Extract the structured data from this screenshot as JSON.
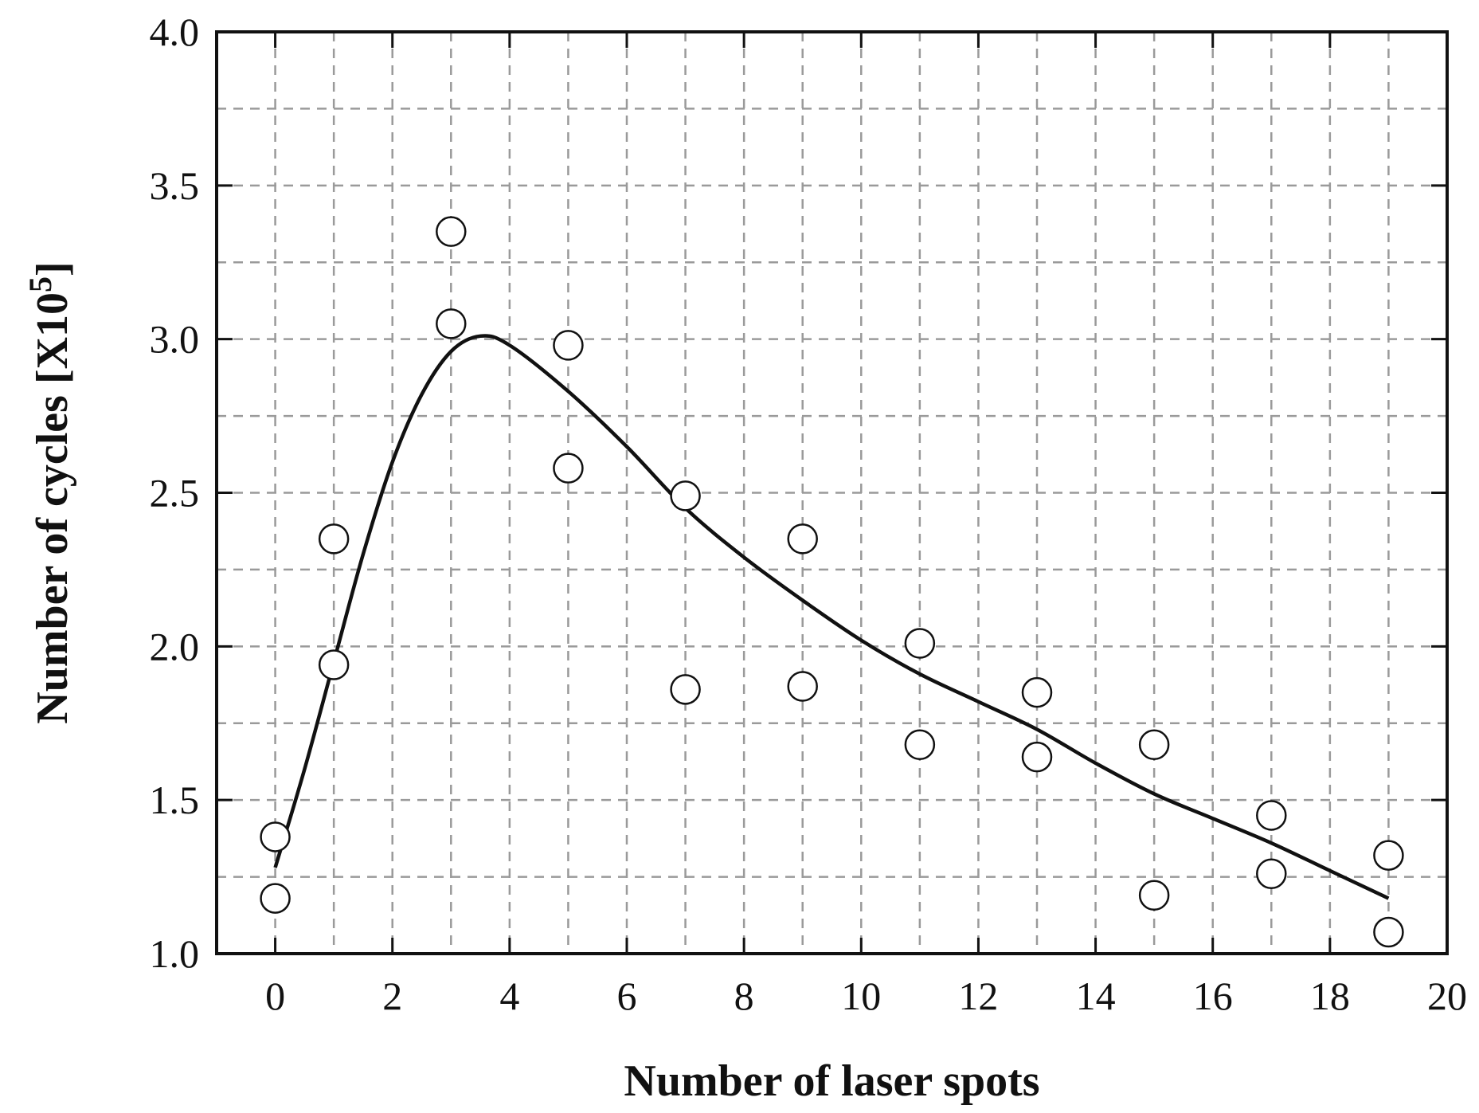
{
  "chart_data": {
    "type": "scatter",
    "xlabel": "Number of laser spots",
    "ylabel": {
      "text": "Number of cycles [X10",
      "superscript": "5",
      "suffix": "]"
    },
    "xlim": [
      -1,
      20
    ],
    "ylim": [
      1.0,
      4.0
    ],
    "x_ticks": [
      "0",
      "2",
      "4",
      "6",
      "8",
      "10",
      "12",
      "14",
      "16",
      "18",
      "20"
    ],
    "y_ticks": [
      "1.0",
      "1.5",
      "2.0",
      "2.5",
      "3.0",
      "3.5",
      "4.0"
    ],
    "grid": true,
    "grid_x_step": 1,
    "grid_y_step": 0.25,
    "series": [
      {
        "marker": "open-circle",
        "points": [
          {
            "x": 0,
            "y": 1.38
          },
          {
            "x": 0,
            "y": 1.18
          },
          {
            "x": 1,
            "y": 2.35
          },
          {
            "x": 1,
            "y": 1.94
          },
          {
            "x": 3,
            "y": 3.35
          },
          {
            "x": 3,
            "y": 3.05
          },
          {
            "x": 5,
            "y": 2.98
          },
          {
            "x": 5,
            "y": 2.58
          },
          {
            "x": 7,
            "y": 2.49
          },
          {
            "x": 7,
            "y": 1.86
          },
          {
            "x": 9,
            "y": 2.35
          },
          {
            "x": 9,
            "y": 1.87
          },
          {
            "x": 11,
            "y": 2.01
          },
          {
            "x": 11,
            "y": 1.68
          },
          {
            "x": 13,
            "y": 1.85
          },
          {
            "x": 13,
            "y": 1.64
          },
          {
            "x": 15,
            "y": 1.68
          },
          {
            "x": 15,
            "y": 1.19
          },
          {
            "x": 17,
            "y": 1.45
          },
          {
            "x": 17,
            "y": 1.26
          },
          {
            "x": 19,
            "y": 1.32
          },
          {
            "x": 19,
            "y": 1.07
          }
        ]
      },
      {
        "marker": "line",
        "points": [
          {
            "x": 0,
            "y": 1.28
          },
          {
            "x": 0.5,
            "y": 1.6
          },
          {
            "x": 1,
            "y": 1.95
          },
          {
            "x": 1.5,
            "y": 2.3
          },
          {
            "x": 2,
            "y": 2.6
          },
          {
            "x": 2.5,
            "y": 2.82
          },
          {
            "x": 3,
            "y": 2.96
          },
          {
            "x": 3.5,
            "y": 3.01
          },
          {
            "x": 4,
            "y": 2.98
          },
          {
            "x": 5,
            "y": 2.83
          },
          {
            "x": 6,
            "y": 2.65
          },
          {
            "x": 7,
            "y": 2.45
          },
          {
            "x": 8,
            "y": 2.29
          },
          {
            "x": 9,
            "y": 2.15
          },
          {
            "x": 10,
            "y": 2.02
          },
          {
            "x": 11,
            "y": 1.91
          },
          {
            "x": 12,
            "y": 1.82
          },
          {
            "x": 13,
            "y": 1.73
          },
          {
            "x": 14,
            "y": 1.62
          },
          {
            "x": 15,
            "y": 1.52
          },
          {
            "x": 16,
            "y": 1.44
          },
          {
            "x": 17,
            "y": 1.36
          },
          {
            "x": 18,
            "y": 1.27
          },
          {
            "x": 19,
            "y": 1.18
          }
        ]
      }
    ]
  }
}
